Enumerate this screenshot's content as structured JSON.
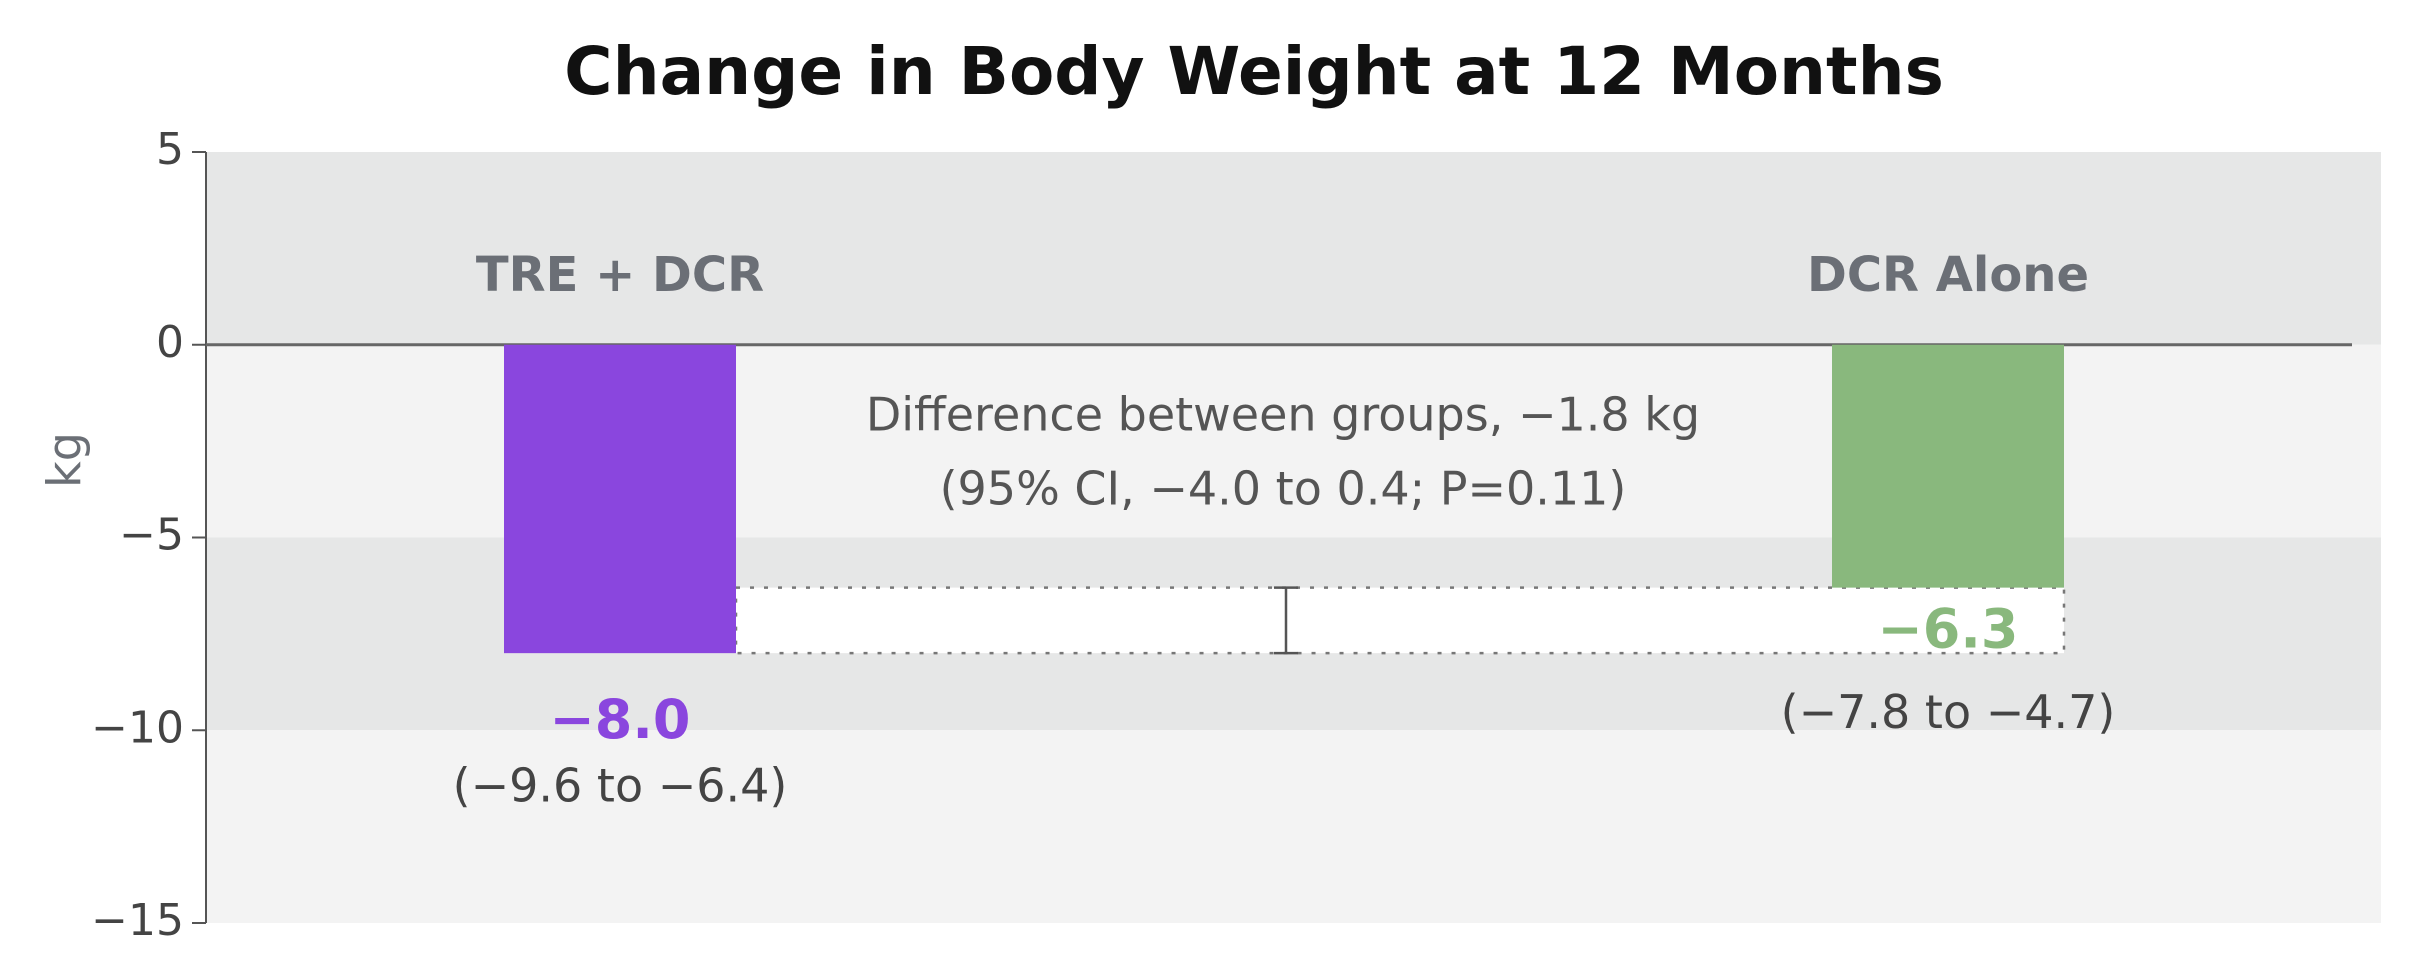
{
  "chart_data": {
    "type": "bar",
    "title": "Change in Body Weight at 12 Months",
    "y_label": "kg",
    "categories": [
      "TRE + DCR",
      "DCR Alone"
    ],
    "values": [
      -8.0,
      -6.3
    ],
    "value_labels": [
      "−8.0",
      "−6.3"
    ],
    "intervals": [
      "(−9.6 to −6.4)",
      "(−7.8 to −4.7)"
    ],
    "colors": [
      "#8a46de",
      "#89b87d"
    ],
    "annotation": [
      "Difference between groups, −1.8 kg",
      "(95% CI, −4.0 to 0.4; P=0.11)"
    ],
    "ylim": [
      -15,
      5
    ],
    "yticks": [
      {
        "value": 5,
        "label": "5"
      },
      {
        "value": 0,
        "label": "0"
      },
      {
        "value": -5,
        "label": "−5"
      },
      {
        "value": -10,
        "label": "−10"
      },
      {
        "value": -15,
        "label": "−15"
      }
    ]
  }
}
